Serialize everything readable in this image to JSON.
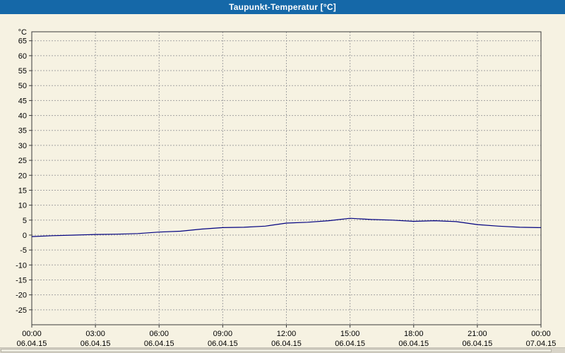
{
  "window": {
    "title": "Taupunkt-Temperatur [°C]"
  },
  "colors": {
    "titlebar": "#1568a8",
    "background": "#f6f2e2",
    "grid": "#a3a3a3",
    "axis": "#3a3a3a",
    "line": "#000080"
  },
  "chart_data": {
    "type": "line",
    "title": "Taupunkt-Temperatur [°C]",
    "ylabel": "°C",
    "xlabel": "",
    "ylim": [
      -30,
      68
    ],
    "yticks": {
      "min": -25,
      "max": 65,
      "step": 5
    },
    "xlim": [
      0,
      24
    ],
    "grid": "dashed",
    "legend": "none",
    "xticks": {
      "hours": [
        0,
        3,
        6,
        9,
        12,
        15,
        18,
        21,
        24
      ],
      "time_labels": [
        "00:00",
        "03:00",
        "06:00",
        "09:00",
        "12:00",
        "15:00",
        "18:00",
        "21:00",
        "00:00"
      ],
      "date_labels": [
        "06.04.15",
        "06.04.15",
        "06.04.15",
        "06.04.15",
        "06.04.15",
        "06.04.15",
        "06.04.15",
        "06.04.15",
        "07.04.15"
      ]
    },
    "series": [
      {
        "name": "Taupunkt-Temperatur",
        "color": "#000080",
        "x": [
          0,
          1,
          2,
          3,
          4,
          5,
          6,
          7,
          8,
          9,
          10,
          11,
          12,
          13,
          14,
          15,
          16,
          17,
          18,
          19,
          20,
          21,
          22,
          23,
          24
        ],
        "values": [
          -0.5,
          -0.2,
          0.0,
          0.2,
          0.3,
          0.5,
          1.0,
          1.3,
          2.0,
          2.5,
          2.6,
          3.0,
          4.0,
          4.3,
          4.8,
          5.6,
          5.2,
          5.0,
          4.6,
          4.8,
          4.5,
          3.5,
          3.0,
          2.6,
          2.5
        ]
      }
    ]
  }
}
